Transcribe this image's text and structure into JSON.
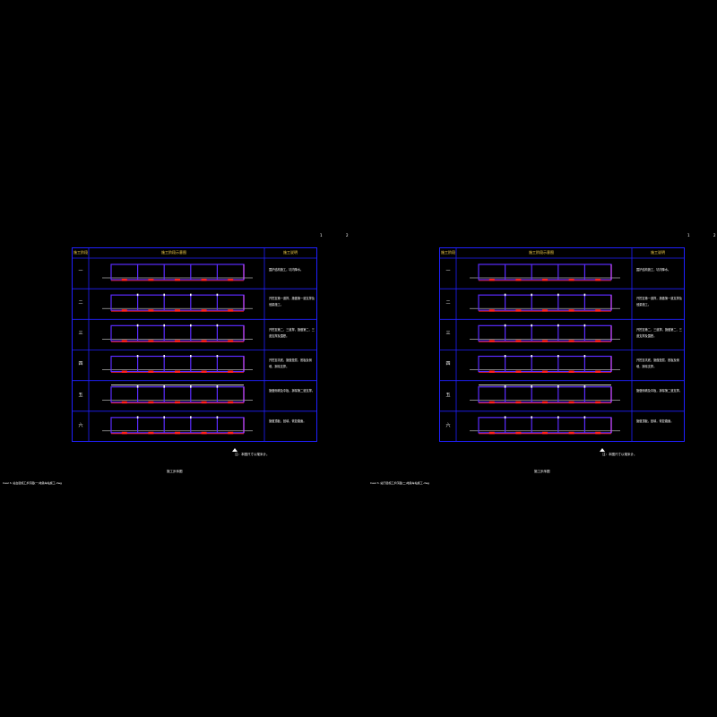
{
  "colors": {
    "background": "#000000",
    "table_border": "#2020ff",
    "frame": "#5b2bff",
    "frame_right": "#d04bff",
    "ground": "#ffffff",
    "base": "#ff2020",
    "header_text": "#ffd84a"
  },
  "sheets": [
    {
      "corner_left": "1",
      "corner_right": "2",
      "header": {
        "col1": "施工阶段",
        "col2": "施工阶段示意图",
        "col3": "施工说明"
      },
      "rows": [
        {
          "label": "一",
          "desc": "围护结构施工，坑内降水。"
        },
        {
          "label": "二",
          "desc": "开挖至第一道撑，施做第一道支撑及冠梁施工。"
        },
        {
          "label": "三",
          "desc": "开挖至第二、三道撑，施做第二、三道支撑及围檩。"
        },
        {
          "label": "四",
          "desc": "开挖至坑底，施做垫层、底板及侧墙，拆除支撑。"
        },
        {
          "label": "五",
          "desc": "施做侧墙及中板，拆除第二道支撑。"
        },
        {
          "label": "六",
          "desc": "施做顶板，回填，恢复路面。"
        }
      ],
      "footnote": "注：本图尺寸以毫米计。",
      "caption": "施工步序图",
      "path": "Ceal 3. 站台层施工步序图(一)地铁车站施工.dwg"
    },
    {
      "corner_left": "1",
      "corner_right": "2",
      "header": {
        "col1": "施工阶段",
        "col2": "施工阶段示意图",
        "col3": "施工说明"
      },
      "rows": [
        {
          "label": "一",
          "desc": "围护结构施工，坑内降水。"
        },
        {
          "label": "二",
          "desc": "开挖至第一道撑，施做第一道支撑及冠梁施工。"
        },
        {
          "label": "三",
          "desc": "开挖至第二、三道撑，施做第二、三道支撑及围檩。"
        },
        {
          "label": "四",
          "desc": "开挖至坑底，施做垫层、底板及侧墙，拆除支撑。"
        },
        {
          "label": "五",
          "desc": "施做侧墙及中板，拆除第二道支撑。"
        },
        {
          "label": "六",
          "desc": "施做顶板，回填，恢复路面。"
        }
      ],
      "footnote": "注：本图尺寸以毫米计。",
      "caption": "施工步序图",
      "path": "Ceal 3. 站厅层施工步序图(二)地铁车站施工.dwg"
    }
  ]
}
